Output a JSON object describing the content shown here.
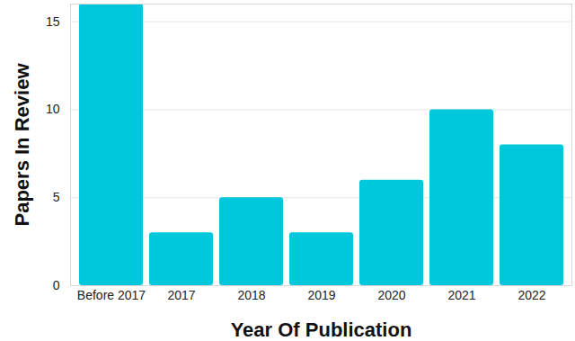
{
  "chart_data": {
    "type": "bar",
    "x_label": "Year Of Publication",
    "y_label": "Papers In Review",
    "categories": [
      "Before 2017",
      "2017",
      "2018",
      "2019",
      "2020",
      "2021",
      "2022"
    ],
    "values": [
      16,
      3,
      5,
      3,
      6,
      10,
      8
    ],
    "color": "#00c8dc",
    "ylim": [
      0,
      16
    ],
    "yticks": [
      0,
      5,
      10,
      15
    ],
    "grid": true
  }
}
